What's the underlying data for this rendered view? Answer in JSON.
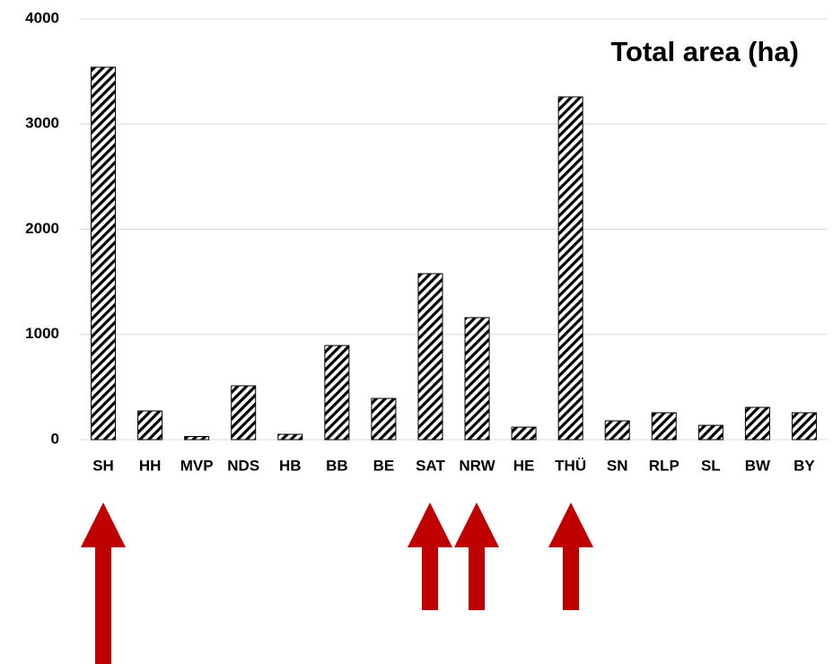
{
  "chart_data": {
    "type": "bar",
    "title": "Total area (ha)",
    "categories": [
      "SH",
      "HH",
      "MVP",
      "NDS",
      "HB",
      "BB",
      "BE",
      "SAT",
      "NRW",
      "HE",
      "THÜ",
      "SN",
      "RLP",
      "SL",
      "BW",
      "BY"
    ],
    "values": [
      3540,
      273,
      30,
      512,
      51,
      895,
      392,
      1578,
      1160,
      119,
      3258,
      179,
      256,
      136,
      307,
      256
    ],
    "color": "#000000",
    "ylim": [
      0,
      4000
    ],
    "yticks": [
      0,
      1000,
      2000,
      3000,
      4000
    ],
    "grid": true
  }
}
